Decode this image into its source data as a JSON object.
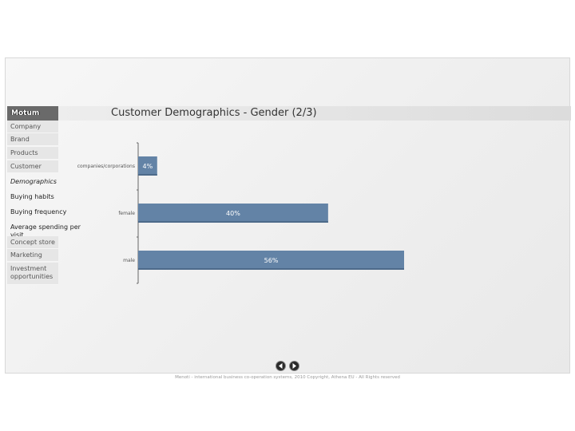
{
  "header": {
    "logo_text": "Motum",
    "title": "Customer Demographics - Gender (2/3)"
  },
  "sidebar": {
    "items": [
      {
        "label": "Company"
      },
      {
        "label": "Brand"
      },
      {
        "label": "Products"
      },
      {
        "label": "Customer"
      },
      {
        "label": "Concept store"
      },
      {
        "label": "Marketing"
      },
      {
        "label": "Investment opportunities"
      }
    ],
    "subitems": [
      {
        "label": "Demographics",
        "active": true
      },
      {
        "label": "Buying habits",
        "active": false
      },
      {
        "label": "Buying frequency",
        "active": false
      },
      {
        "label": "Average spending per visit",
        "active": false
      }
    ]
  },
  "chart_data": {
    "type": "bar",
    "orientation": "horizontal",
    "categories": [
      "companies/corporations",
      "female",
      "male"
    ],
    "values": [
      4,
      40,
      56
    ],
    "value_labels": [
      "4%",
      "40%",
      "56%"
    ],
    "xlim": [
      0,
      60
    ],
    "bar_color": "#6383a6"
  },
  "pager": {
    "prev_icon": "chevron-left-icon",
    "next_icon": "chevron-right-icon"
  },
  "footer": {
    "text": "Menoti - international business co-operation systems, 2010 Copyright, Athena EU - All Rights reserved"
  }
}
